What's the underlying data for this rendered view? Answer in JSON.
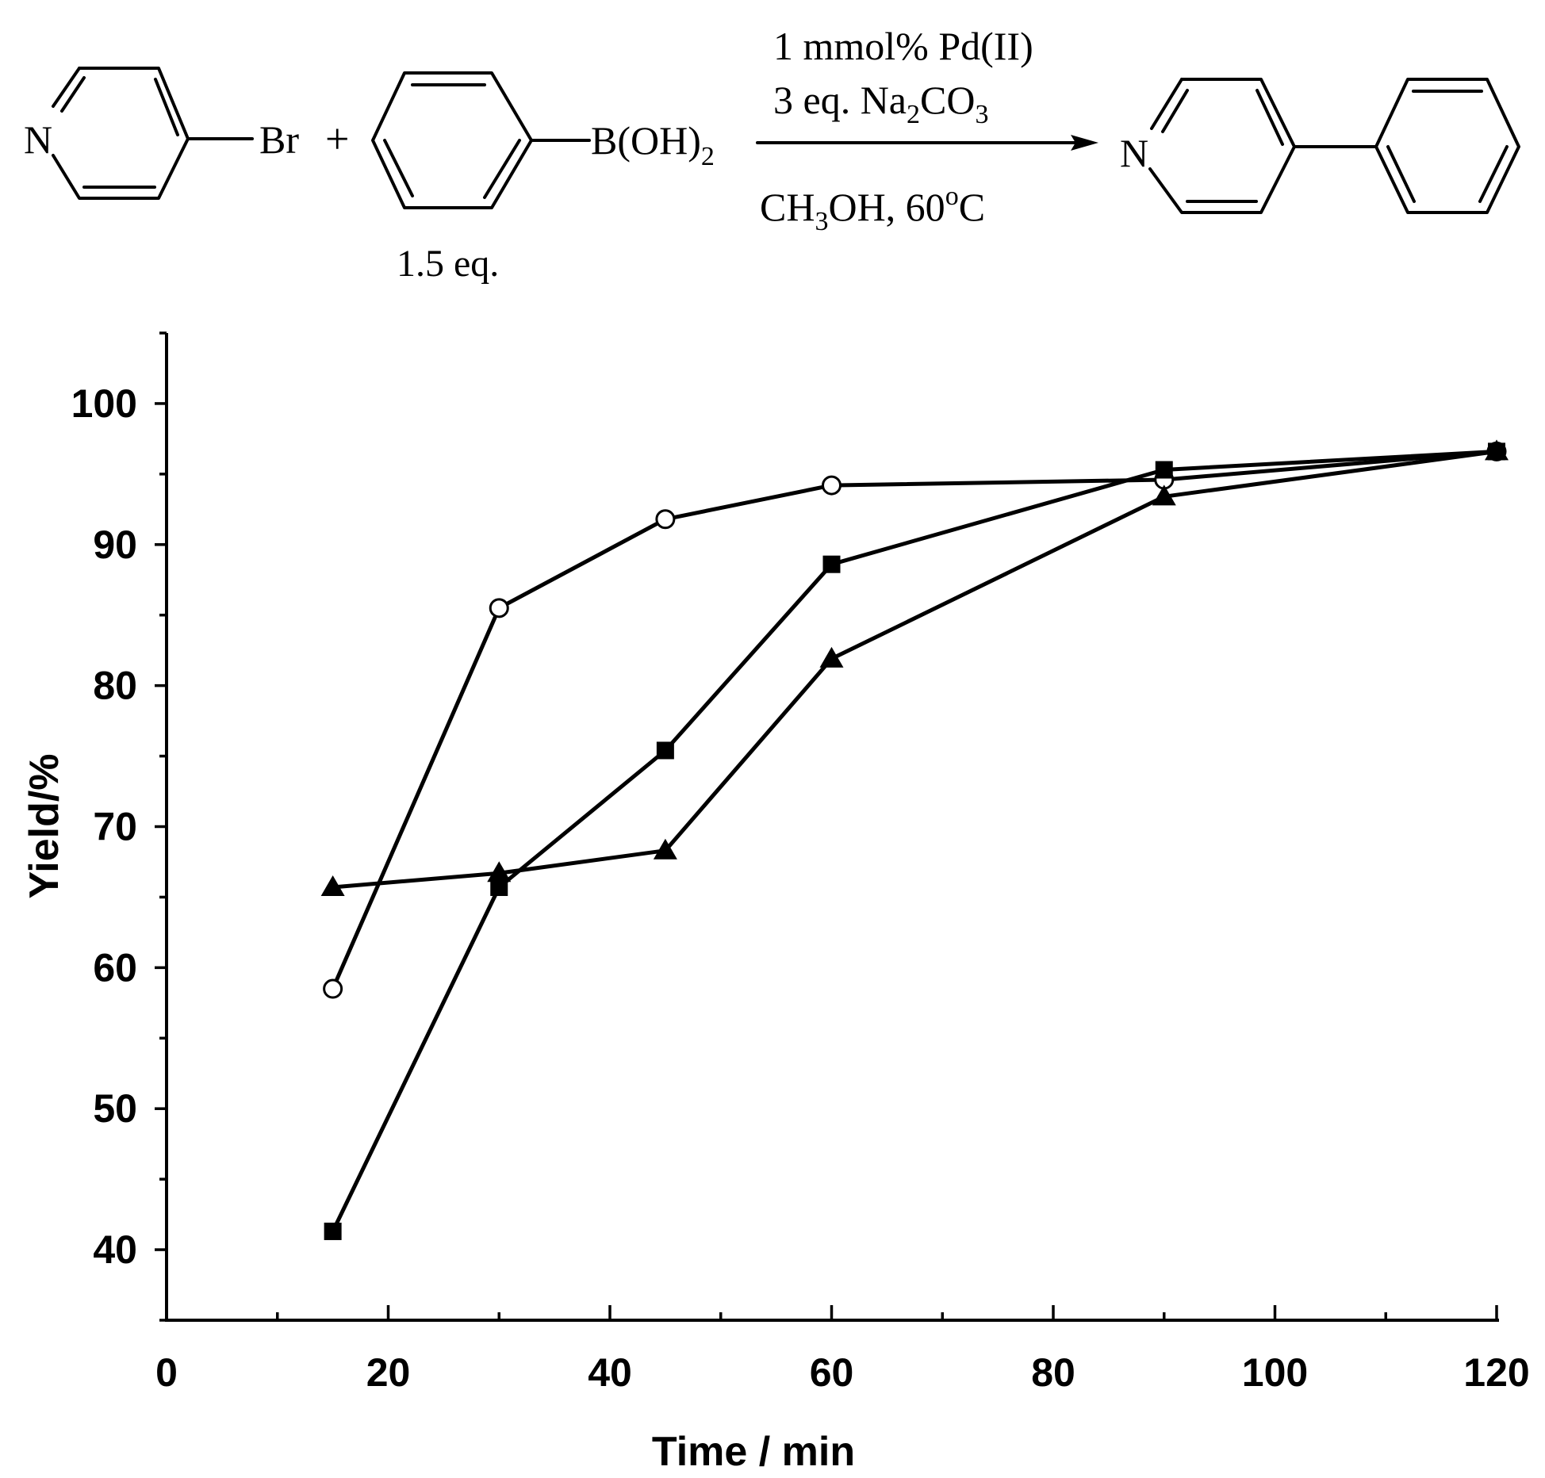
{
  "scheme": {
    "reactant1_label": "Br",
    "reactant1_hetero": "N",
    "plus": "+",
    "reactant2_label": "B(OH)",
    "reactant2_sub": "2",
    "reactant2_equiv": "1.5 eq.",
    "cond_line1": "1 mmol% Pd(II)",
    "cond_line2_a": "3 eq. Na",
    "cond_line2_sub1": "2",
    "cond_line2_b": "CO",
    "cond_line2_sub2": "3",
    "cond_line3_a": "CH",
    "cond_line3_sub": "3",
    "cond_line3_b": "OH, 60",
    "cond_line3_sup": "o",
    "cond_line3_c": "C",
    "product_hetero": "N"
  },
  "chart_data": {
    "type": "line",
    "xlabel": "Time / min",
    "ylabel": "Yield/%",
    "xlim": [
      0,
      120
    ],
    "ylim": [
      35,
      105
    ],
    "xticks": [
      0,
      20,
      40,
      60,
      80,
      100,
      120
    ],
    "yticks": [
      40,
      50,
      60,
      70,
      80,
      90,
      100
    ],
    "x": [
      15,
      30,
      45,
      60,
      90,
      120
    ],
    "series": [
      {
        "marker": "circle-open",
        "values": [
          58.5,
          85.5,
          91.8,
          94.2,
          94.6,
          96.6
        ]
      },
      {
        "marker": "square-filled",
        "values": [
          41.3,
          65.7,
          75.4,
          88.6,
          95.3,
          96.6
        ]
      },
      {
        "marker": "triangle-filled",
        "values": [
          65.7,
          66.7,
          68.3,
          81.9,
          93.4,
          96.6
        ]
      }
    ]
  }
}
